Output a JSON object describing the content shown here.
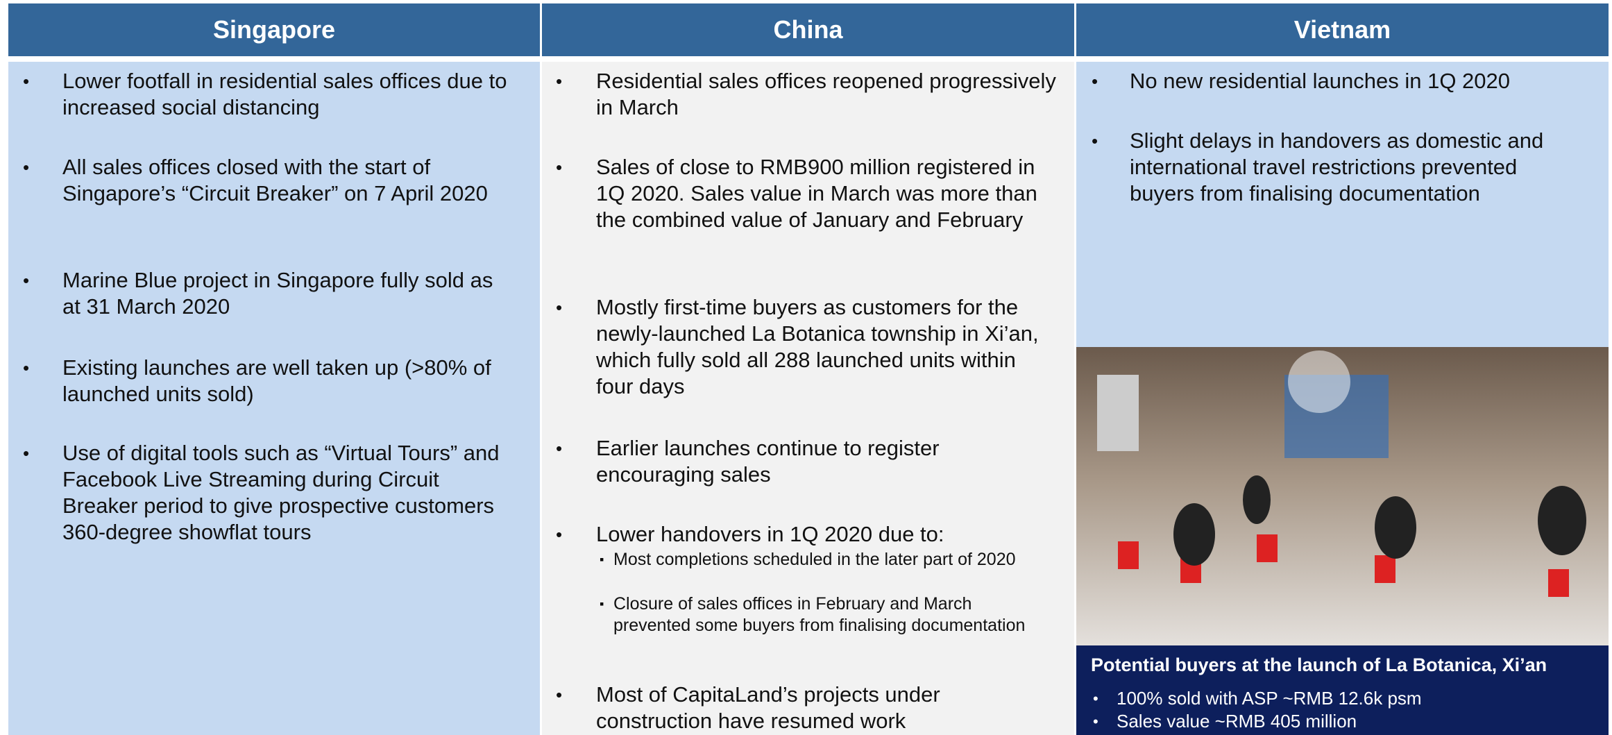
{
  "columns": [
    {
      "header": "Singapore",
      "bullets": [
        {
          "text": "Lower footfall in residential sales offices due to increased social distancing"
        },
        {
          "text": "All sales offices closed with the start of Singapore’s “Circuit Breaker” on 7 April 2020"
        },
        {
          "text": "Marine Blue project in Singapore fully sold as at 31 March 2020"
        },
        {
          "text": "Existing launches are well taken up (>80% of launched units sold)"
        },
        {
          "text": "Use of digital tools such as “Virtual Tours” and Facebook Live Streaming during Circuit Breaker period to give prospective customers 360-degree showflat tours"
        }
      ]
    },
    {
      "header": "China",
      "bullets": [
        {
          "text": "Residential sales offices reopened progressively in March"
        },
        {
          "text": "Sales of close to RMB900 million registered in 1Q 2020. Sales value in March was more than the combined value of January and February"
        },
        {
          "text": "Mostly first-time buyers as customers for the newly-launched La Botanica township in Xi’an, which fully sold all 288 launched units within four days"
        },
        {
          "text": "Earlier launches continue to register encouraging sales"
        },
        {
          "text": "Lower handovers in 1Q 2020 due to:",
          "sub": [
            "Most completions scheduled in the later part of 2020",
            "Closure of sales offices in February and March prevented some buyers from finalising documentation"
          ]
        },
        {
          "text": "Most of CapitaLand’s projects under construction have resumed work"
        }
      ]
    },
    {
      "header": "Vietnam",
      "bullets": [
        {
          "text": "No new residential launches in 1Q 2020"
        },
        {
          "text": "Slight delays in handovers as domestic and international travel restrictions prevented buyers from finalising documentation"
        }
      ]
    }
  ],
  "caption": {
    "title": "Potential buyers at the launch of La Botanica,  Xi’an",
    "bullets": [
      "100% sold with ASP ~RMB 12.6k psm",
      "Sales value ~RMB 405 million"
    ]
  }
}
